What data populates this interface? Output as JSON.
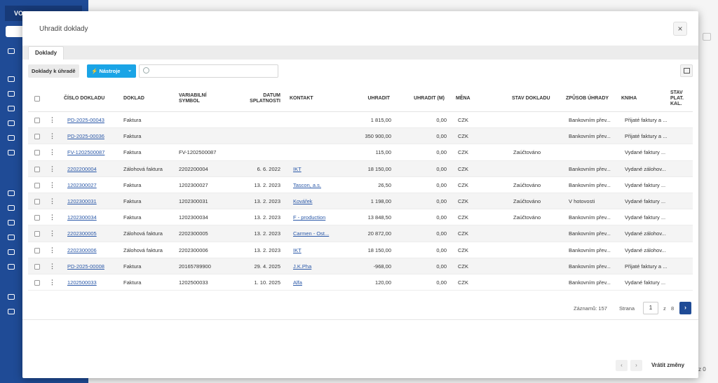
{
  "app": {
    "company_label": "VO..",
    "bottom_right_text": "z 0"
  },
  "dialog": {
    "title": "Uhradit doklady",
    "close_icon": "×",
    "tab": "Doklady",
    "toolbar": {
      "docs_button": "Doklady k úhradě",
      "tools_button": "Nástroje",
      "search_placeholder": ""
    }
  },
  "grid": {
    "columns": [
      "ČÍSLO DOKLADU",
      "DOKLAD",
      "VARIABILNÍ SYMBOL",
      "DATUM SPLATNOSTI",
      "KONTAKT",
      "UHRADIT",
      "UHRADIT (M)",
      "MĚNA",
      "STAV DOKLADU",
      "ZPŮSOB ÚHRADY",
      "KNIHA",
      "STAV PLAT. KAL."
    ],
    "rows": [
      {
        "cislo": "PD-2025-00043",
        "doklad": "Faktura",
        "vs": "",
        "datum": "",
        "kontakt": "",
        "uhradit": "1 815,00",
        "uhradit_m": "0,00",
        "mena": "CZK",
        "stav": "",
        "zpusob": "Bankovním přev...",
        "kniha": "Přijaté faktury a ..."
      },
      {
        "cislo": "PD-2025-00036",
        "doklad": "Faktura",
        "vs": "",
        "datum": "",
        "kontakt": "",
        "uhradit": "350 900,00",
        "uhradit_m": "0,00",
        "mena": "CZK",
        "stav": "",
        "zpusob": "Bankovním přev...",
        "kniha": "Přijaté faktury a ..."
      },
      {
        "cislo": "FV-1202500087",
        "doklad": "Faktura",
        "vs": "FV-1202500087",
        "datum": "",
        "kontakt": "",
        "uhradit": "115,00",
        "uhradit_m": "0,00",
        "mena": "CZK",
        "stav": "Zaúčtováno",
        "zpusob": "",
        "kniha": "Vydané faktury ..."
      },
      {
        "cislo": "2202200004",
        "doklad": "Zálohová faktura",
        "vs": "2202200004",
        "datum": "6. 6. 2022",
        "kontakt": "IKT",
        "uhradit": "18 150,00",
        "uhradit_m": "0,00",
        "mena": "CZK",
        "stav": "",
        "zpusob": "Bankovním přev...",
        "kniha": "Vydané zálohov..."
      },
      {
        "cislo": "1202300027",
        "doklad": "Faktura",
        "vs": "1202300027",
        "datum": "13. 2. 2023",
        "kontakt": "Tascon, a.s.",
        "uhradit": "26,50",
        "uhradit_m": "0,00",
        "mena": "CZK",
        "stav": "Zaúčtováno",
        "zpusob": "Bankovním přev...",
        "kniha": "Vydané faktury ..."
      },
      {
        "cislo": "1202300031",
        "doklad": "Faktura",
        "vs": "1202300031",
        "datum": "13. 2. 2023",
        "kontakt": "Kovářek",
        "uhradit": "1 198,00",
        "uhradit_m": "0,00",
        "mena": "CZK",
        "stav": "Zaúčtováno",
        "zpusob": "V hotovosti",
        "kniha": "Vydané faktury ..."
      },
      {
        "cislo": "1202300034",
        "doklad": "Faktura",
        "vs": "1202300034",
        "datum": "13. 2. 2023",
        "kontakt": "F - production",
        "uhradit": "13 848,50",
        "uhradit_m": "0,00",
        "mena": "CZK",
        "stav": "Zaúčtováno",
        "zpusob": "Bankovním přev...",
        "kniha": "Vydané faktury ..."
      },
      {
        "cislo": "2202300005",
        "doklad": "Zálohová faktura",
        "vs": "2202300005",
        "datum": "13. 2. 2023",
        "kontakt": "Carmen - Ost...",
        "uhradit": "20 872,00",
        "uhradit_m": "0,00",
        "mena": "CZK",
        "stav": "",
        "zpusob": "Bankovním přev...",
        "kniha": "Vydané zálohov..."
      },
      {
        "cislo": "2202300006",
        "doklad": "Zálohová faktura",
        "vs": "2202300006",
        "datum": "13. 2. 2023",
        "kontakt": "IKT",
        "uhradit": "18 150,00",
        "uhradit_m": "0,00",
        "mena": "CZK",
        "stav": "",
        "zpusob": "Bankovním přev...",
        "kniha": "Vydané zálohov..."
      },
      {
        "cislo": "PD-2025-00008",
        "doklad": "Faktura",
        "vs": "20165789900",
        "datum": "29. 4. 2025",
        "kontakt": "J.K.Pha",
        "uhradit": "-968,00",
        "uhradit_m": "0,00",
        "mena": "CZK",
        "stav": "",
        "zpusob": "Bankovním přev...",
        "kniha": "Přijaté faktury a ..."
      },
      {
        "cislo": "1202500033",
        "doklad": "Faktura",
        "vs": "1202500033",
        "datum": "1. 10. 2025",
        "kontakt": "Alfa",
        "uhradit": "120,00",
        "uhradit_m": "0,00",
        "mena": "CZK",
        "stav": "",
        "zpusob": "Bankovním přev...",
        "kniha": "Vydané faktury ..."
      }
    ]
  },
  "pager": {
    "records_label": "Záznamů: 157",
    "page_label": "Strana",
    "current_page": "1",
    "of_label": "z",
    "total_pages": "8",
    "next_icon": "›"
  },
  "footer": {
    "prev_icon": "‹",
    "next_icon": "›",
    "undo_label": "Vrátit změny"
  }
}
